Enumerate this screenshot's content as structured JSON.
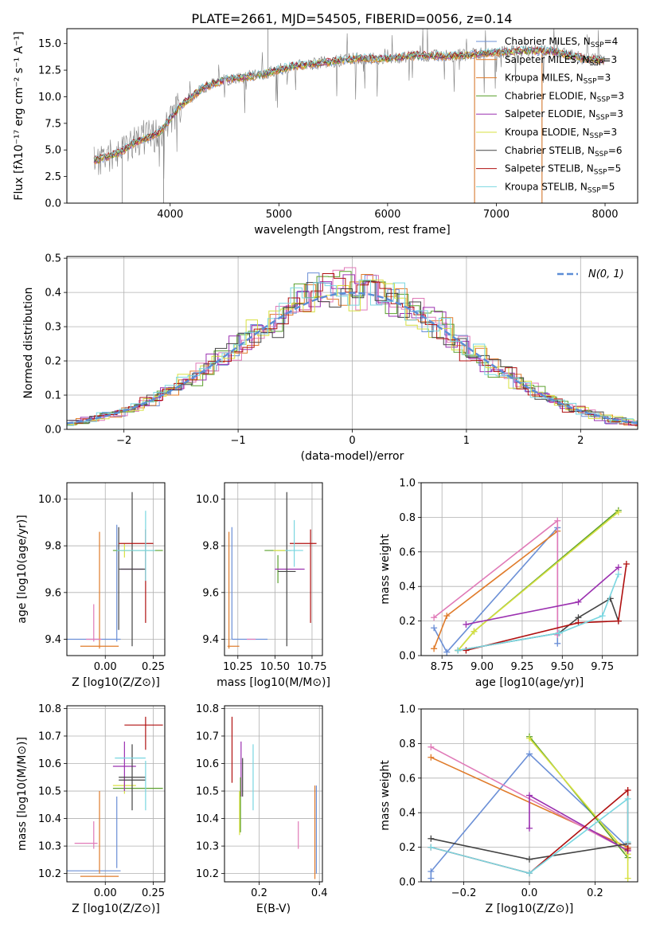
{
  "figure_title": "PLATE=2661, MJD=54505, FIBERID=0056, z=0.14",
  "colors": {
    "chabrier_miles": "#6b8fd6",
    "salpeter_miles": "#e07b2a",
    "kroupa_miles": "#e07b2a",
    "chabrier_elodie": "#5aa02c",
    "salpeter_elodie": "#9b30b0",
    "kroupa_elodie": "#d7e040",
    "chabrier_stelib": "#444444",
    "salpeter_stelib": "#b01010",
    "kroupa_stelib": "#79d6e0",
    "pink": "#e07ab8",
    "gauss": "#5b8dd6",
    "data": "#7f7f7f"
  },
  "chart_data": [
    {
      "id": "spectrum",
      "type": "line",
      "title": "PLATE=2661, MJD=54505, FIBERID=0056, z=0.14",
      "xlabel": "wavelength [Angstrom, rest frame]",
      "ylabel": "Flux [fλ10⁻¹⁷ erg cm⁻² s⁻¹ A⁻¹]",
      "xlim": [
        3050,
        8300
      ],
      "ylim": [
        0,
        16.4
      ],
      "xticks": [
        4000,
        5000,
        6000,
        7000,
        8000
      ],
      "yticks": [
        0.0,
        2.5,
        5.0,
        7.5,
        10.0,
        12.5,
        15.0
      ],
      "continuum": {
        "x": [
          3300,
          3500,
          3700,
          3900,
          4100,
          4300,
          4500,
          4800,
          5100,
          5400,
          5700,
          6000,
          6300,
          6600,
          6900,
          7200,
          7500,
          7800,
          8000
        ],
        "y": [
          4.0,
          4.6,
          5.8,
          6.6,
          9.2,
          10.8,
          11.6,
          12.0,
          12.8,
          13.2,
          13.6,
          13.6,
          13.9,
          13.8,
          14.1,
          14.3,
          14.3,
          13.6,
          13.4
        ]
      },
      "series": [
        {
          "name": "Chabrier MILES, N_SSP=4",
          "color_key": "chabrier_miles"
        },
        {
          "name": "Salpeter MILES, N_SSP=3",
          "color_key": "salpeter_miles"
        },
        {
          "name": "Kroupa MILES, N_SSP=3",
          "color_key": "kroupa_miles"
        },
        {
          "name": "Chabrier ELODIE, N_SSP=3",
          "color_key": "chabrier_elodie"
        },
        {
          "name": "Salpeter ELODIE, N_SSP=3",
          "color_key": "salpeter_elodie"
        },
        {
          "name": "Kroupa ELODIE, N_SSP=3",
          "color_key": "kroupa_elodie"
        },
        {
          "name": "Chabrier STELIB, N_SSP=6",
          "color_key": "chabrier_stelib"
        },
        {
          "name": "Salpeter STELIB, N_SSP=5",
          "color_key": "salpeter_stelib"
        },
        {
          "name": "Kroupa STELIB, N_SSP=5",
          "color_key": "kroupa_stelib"
        }
      ],
      "legend_position": "top-right"
    },
    {
      "id": "residuals",
      "type": "line",
      "xlabel": "(data-model)/error",
      "ylabel": "Normed distribution",
      "xlim": [
        -2.5,
        2.5
      ],
      "ylim": [
        0,
        0.505
      ],
      "xticks": [
        -2,
        -1,
        0,
        1,
        2
      ],
      "yticks": [
        0.0,
        0.1,
        0.2,
        0.3,
        0.4,
        0.5
      ],
      "gaussian": {
        "name": "N(0, 1)",
        "mean": 0,
        "sigma": 1
      },
      "histograms": [
        {
          "color_key": "chabrier_miles",
          "shift": 0.01,
          "seed": 1
        },
        {
          "color_key": "salpeter_miles",
          "shift": -0.02,
          "seed": 2
        },
        {
          "color_key": "pink",
          "shift": 0.03,
          "seed": 3
        },
        {
          "color_key": "chabrier_elodie",
          "shift": -0.01,
          "seed": 4
        },
        {
          "color_key": "salpeter_elodie",
          "shift": 0.02,
          "seed": 5
        },
        {
          "color_key": "kroupa_elodie",
          "shift": -0.03,
          "seed": 6
        },
        {
          "color_key": "chabrier_stelib",
          "shift": 0.0,
          "seed": 7
        },
        {
          "color_key": "salpeter_stelib",
          "shift": 0.04,
          "seed": 8
        },
        {
          "color_key": "kroupa_stelib",
          "shift": -0.04,
          "seed": 9
        }
      ],
      "legend_position": "top-right"
    },
    {
      "id": "age_vs_Z",
      "type": "scatter",
      "xlabel": "Z [log10(Z/Z⊙)]",
      "ylabel": "age  [log10(age/yr)]",
      "xlim": [
        -0.2,
        0.31
      ],
      "ylim": [
        9.33,
        10.07
      ],
      "xticks": [
        0.0,
        0.25
      ],
      "yticks": [
        9.4,
        9.6,
        9.8,
        10.0
      ],
      "crosses": [
        {
          "color_key": "chabrier_miles",
          "x": -0.06,
          "xerr": 0.14,
          "y": 9.4,
          "yerr": 0.0
        },
        {
          "color_key": "chabrier_miles",
          "x": 0.06,
          "xerr": 0.0,
          "y": 9.64,
          "yerr": 0.25
        },
        {
          "color_key": "salpeter_miles",
          "x": -0.03,
          "xerr": 0.1,
          "y": 9.37,
          "yerr": 0.0
        },
        {
          "color_key": "salpeter_miles",
          "x": -0.03,
          "xerr": 0.0,
          "y": 9.61,
          "yerr": 0.25
        },
        {
          "color_key": "pink",
          "x": -0.06,
          "xerr": 0.0,
          "y": 9.47,
          "yerr": 0.08
        },
        {
          "color_key": "pink",
          "x": -0.06,
          "xerr": 0.04,
          "y": 9.4,
          "yerr": 0.0
        },
        {
          "color_key": "chabrier_elodie",
          "x": 0.17,
          "xerr": 0.13,
          "y": 9.78,
          "yerr": 0.0
        },
        {
          "color_key": "kroupa_elodie",
          "x": 0.1,
          "xerr": 0.04,
          "y": 9.78,
          "yerr": 0.03
        },
        {
          "color_key": "salpeter_elodie",
          "x": 0.14,
          "xerr": 0.06,
          "y": 9.7,
          "yerr": 0.0
        },
        {
          "color_key": "chabrier_stelib",
          "x": 0.07,
          "xerr": 0.0,
          "y": 9.66,
          "yerr": 0.22
        },
        {
          "color_key": "chabrier_stelib",
          "x": 0.14,
          "xerr": 0.07,
          "y": 9.7,
          "yerr": 0.33
        },
        {
          "color_key": "salpeter_stelib",
          "x": 0.16,
          "xerr": 0.09,
          "y": 9.81,
          "yerr": 0.0
        },
        {
          "color_key": "salpeter_stelib",
          "x": 0.21,
          "xerr": 0.0,
          "y": 9.67,
          "yerr": 0.2
        },
        {
          "color_key": "kroupa_stelib",
          "x": 0.21,
          "xerr": 0.0,
          "y": 9.8,
          "yerr": 0.15
        },
        {
          "color_key": "kroupa_stelib",
          "x": 0.16,
          "xerr": 0.1,
          "y": 9.78,
          "yerr": 0.0
        }
      ]
    },
    {
      "id": "age_vs_mass",
      "type": "scatter",
      "xlabel": "mass [log10(M/M⊙)]",
      "ylabel": "",
      "xlim": [
        10.16,
        10.82
      ],
      "ylim": [
        9.33,
        10.07
      ],
      "xticks": [
        10.25,
        10.5,
        10.75
      ],
      "yticks": [
        9.4,
        9.6,
        9.8,
        10.0
      ],
      "crosses": [
        {
          "color_key": "chabrier_miles",
          "x": 10.21,
          "xerr": 0.0,
          "y": 9.64,
          "yerr": 0.24
        },
        {
          "color_key": "chabrier_miles",
          "x": 10.33,
          "xerr": 0.12,
          "y": 9.4,
          "yerr": 0.0
        },
        {
          "color_key": "salpeter_miles",
          "x": 10.19,
          "xerr": 0.0,
          "y": 9.61,
          "yerr": 0.25
        },
        {
          "color_key": "salpeter_miles",
          "x": 10.22,
          "xerr": 0.04,
          "y": 9.37,
          "yerr": 0.0
        },
        {
          "color_key": "pink",
          "x": 10.34,
          "xerr": 0.03,
          "y": 9.4,
          "yerr": 0.0
        },
        {
          "color_key": "chabrier_elodie",
          "x": 10.52,
          "xerr": 0.09,
          "y": 9.78,
          "yerr": 0.0
        },
        {
          "color_key": "chabrier_elodie",
          "x": 10.52,
          "xerr": 0.0,
          "y": 9.7,
          "yerr": 0.06
        },
        {
          "color_key": "kroupa_elodie",
          "x": 10.53,
          "xerr": 0.04,
          "y": 9.78,
          "yerr": 0.0
        },
        {
          "color_key": "salpeter_elodie",
          "x": 10.6,
          "xerr": 0.1,
          "y": 9.7,
          "yerr": 0.0
        },
        {
          "color_key": "chabrier_stelib",
          "x": 10.58,
          "xerr": 0.0,
          "y": 9.7,
          "yerr": 0.33
        },
        {
          "color_key": "chabrier_stelib",
          "x": 10.58,
          "xerr": 0.06,
          "y": 9.69,
          "yerr": 0.0
        },
        {
          "color_key": "salpeter_stelib",
          "x": 10.74,
          "xerr": 0.0,
          "y": 9.67,
          "yerr": 0.2
        },
        {
          "color_key": "salpeter_stelib",
          "x": 10.69,
          "xerr": 0.09,
          "y": 9.81,
          "yerr": 0.0
        },
        {
          "color_key": "kroupa_stelib",
          "x": 10.63,
          "xerr": 0.0,
          "y": 9.81,
          "yerr": 0.1
        },
        {
          "color_key": "kroupa_stelib",
          "x": 10.63,
          "xerr": 0.06,
          "y": 9.78,
          "yerr": 0.0
        }
      ]
    },
    {
      "id": "weight_vs_age",
      "type": "line",
      "xlabel": "age  [log10(age/yr)]",
      "ylabel": "mass weight",
      "xlim": [
        8.62,
        9.97
      ],
      "ylim": [
        0,
        1.0
      ],
      "xticks": [
        8.75,
        9.0,
        9.25,
        9.5,
        9.75
      ],
      "yticks": [
        0.0,
        0.2,
        0.4,
        0.6,
        0.8,
        1.0
      ],
      "series": [
        {
          "color_key": "chabrier_miles",
          "x": [
            8.7,
            8.78,
            9.47,
            9.47
          ],
          "y": [
            0.16,
            0.02,
            0.74,
            0.07
          ]
        },
        {
          "color_key": "salpeter_miles",
          "x": [
            8.7,
            8.78,
            9.47
          ],
          "y": [
            0.04,
            0.23,
            0.72
          ]
        },
        {
          "color_key": "pink",
          "x": [
            8.7,
            9.47,
            9.47
          ],
          "y": [
            0.22,
            0.78,
            0.12
          ]
        },
        {
          "color_key": "chabrier_elodie",
          "x": [
            8.85,
            8.95,
            9.85
          ],
          "y": [
            0.03,
            0.14,
            0.84
          ]
        },
        {
          "color_key": "kroupa_elodie",
          "x": [
            8.85,
            8.95,
            9.85
          ],
          "y": [
            0.03,
            0.14,
            0.83
          ]
        },
        {
          "color_key": "salpeter_elodie",
          "x": [
            8.9,
            9.6,
            9.85
          ],
          "y": [
            0.18,
            0.31,
            0.51
          ]
        },
        {
          "color_key": "chabrier_stelib",
          "x": [
            8.85,
            9.48,
            9.6,
            9.8,
            9.85
          ],
          "y": [
            0.03,
            0.13,
            0.22,
            0.33,
            0.2
          ]
        },
        {
          "color_key": "salpeter_stelib",
          "x": [
            8.9,
            9.6,
            9.85,
            9.9
          ],
          "y": [
            0.03,
            0.19,
            0.2,
            0.53
          ]
        },
        {
          "color_key": "kroupa_stelib",
          "x": [
            8.85,
            9.48,
            9.75,
            9.85
          ],
          "y": [
            0.03,
            0.13,
            0.23,
            0.47
          ]
        }
      ]
    },
    {
      "id": "mass_vs_Z",
      "type": "scatter",
      "xlabel": "Z [log10(Z/Z⊙)]",
      "ylabel": "mass [log10(M/M⊙)]",
      "xlim": [
        -0.2,
        0.31
      ],
      "ylim": [
        10.17,
        10.81
      ],
      "xticks": [
        0.0,
        0.25
      ],
      "yticks": [
        10.2,
        10.3,
        10.4,
        10.5,
        10.6,
        10.7,
        10.8
      ],
      "crosses": [
        {
          "color_key": "chabrier_miles",
          "x": -0.06,
          "xerr": 0.14,
          "y": 10.21,
          "yerr": 0.0
        },
        {
          "color_key": "chabrier_miles",
          "x": 0.06,
          "xerr": 0.0,
          "y": 10.35,
          "yerr": 0.13
        },
        {
          "color_key": "salpeter_miles",
          "x": -0.03,
          "xerr": 0.1,
          "y": 10.19,
          "yerr": 0.0
        },
        {
          "color_key": "salpeter_miles",
          "x": -0.03,
          "xerr": 0.0,
          "y": 10.35,
          "yerr": 0.15
        },
        {
          "color_key": "pink",
          "x": -0.1,
          "xerr": 0.06,
          "y": 10.31,
          "yerr": 0.0
        },
        {
          "color_key": "pink",
          "x": -0.06,
          "xerr": 0.0,
          "y": 10.34,
          "yerr": 0.05
        },
        {
          "color_key": "chabrier_elodie",
          "x": 0.17,
          "xerr": 0.13,
          "y": 10.51,
          "yerr": 0.0
        },
        {
          "color_key": "kroupa_elodie",
          "x": 0.1,
          "xerr": 0.06,
          "y": 10.52,
          "yerr": 0.03
        },
        {
          "color_key": "salpeter_elodie",
          "x": 0.1,
          "xerr": 0.06,
          "y": 10.59,
          "yerr": 0.09
        },
        {
          "color_key": "chabrier_stelib",
          "x": 0.14,
          "xerr": 0.07,
          "y": 10.55,
          "yerr": 0.12
        },
        {
          "color_key": "chabrier_stelib",
          "x": 0.14,
          "xerr": 0.07,
          "y": 10.54,
          "yerr": 0.0
        },
        {
          "color_key": "salpeter_stelib",
          "x": 0.2,
          "xerr": 0.1,
          "y": 10.74,
          "yerr": 0.0
        },
        {
          "color_key": "salpeter_stelib",
          "x": 0.21,
          "xerr": 0.0,
          "y": 10.71,
          "yerr": 0.06
        },
        {
          "color_key": "kroupa_stelib",
          "x": 0.13,
          "xerr": 0.08,
          "y": 10.62,
          "yerr": 0.0
        },
        {
          "color_key": "kroupa_stelib",
          "x": 0.21,
          "xerr": 0.0,
          "y": 10.52,
          "yerr": 0.09
        }
      ]
    },
    {
      "id": "mass_vs_ebv",
      "type": "scatter",
      "xlabel": "E(B-V)",
      "ylabel": "",
      "xlim": [
        0.085,
        0.41
      ],
      "ylim": [
        10.17,
        10.81
      ],
      "xticks": [
        0.2,
        0.4
      ],
      "yticks": [
        10.2,
        10.3,
        10.4,
        10.5,
        10.6,
        10.7,
        10.8
      ],
      "crosses": [
        {
          "color_key": "salpeter_stelib",
          "x": 0.11,
          "xerr": 0.0,
          "y": 10.65,
          "yerr": 0.12
        },
        {
          "color_key": "salpeter_elodie",
          "x": 0.14,
          "xerr": 0.0,
          "y": 10.58,
          "yerr": 0.1
        },
        {
          "color_key": "chabrier_stelib",
          "x": 0.145,
          "xerr": 0.0,
          "y": 10.55,
          "yerr": 0.07
        },
        {
          "color_key": "chabrier_elodie",
          "x": 0.138,
          "xerr": 0.0,
          "y": 10.45,
          "yerr": 0.1
        },
        {
          "color_key": "kroupa_elodie",
          "x": 0.135,
          "xerr": 0.0,
          "y": 10.42,
          "yerr": 0.08
        },
        {
          "color_key": "kroupa_stelib",
          "x": 0.18,
          "xerr": 0.0,
          "y": 10.55,
          "yerr": 0.12
        },
        {
          "color_key": "pink",
          "x": 0.33,
          "xerr": 0.0,
          "y": 10.34,
          "yerr": 0.05
        },
        {
          "color_key": "salpeter_miles",
          "x": 0.385,
          "xerr": 0.0,
          "y": 10.35,
          "yerr": 0.17
        },
        {
          "color_key": "chabrier_miles",
          "x": 0.39,
          "xerr": 0.0,
          "y": 10.36,
          "yerr": 0.16
        }
      ]
    },
    {
      "id": "weight_vs_Z",
      "type": "line",
      "xlabel": "Z [log10(Z/Z⊙)]",
      "ylabel": "mass weight",
      "xlim": [
        -0.33,
        0.33
      ],
      "ylim": [
        0,
        1.0
      ],
      "xticks": [
        -0.2,
        0.0,
        0.2
      ],
      "yticks": [
        0.0,
        0.2,
        0.4,
        0.6,
        0.8,
        1.0
      ],
      "series": [
        {
          "color_key": "chabrier_miles",
          "x": [
            -0.3,
            -0.3,
            0.0,
            0.3
          ],
          "y": [
            0.02,
            0.06,
            0.74,
            0.2
          ]
        },
        {
          "color_key": "salpeter_miles",
          "x": [
            -0.3,
            0.3
          ],
          "y": [
            0.72,
            0.2
          ]
        },
        {
          "color_key": "pink",
          "x": [
            -0.3,
            0.3
          ],
          "y": [
            0.78,
            0.18
          ]
        },
        {
          "color_key": "chabrier_elodie",
          "x": [
            0.0,
            0.3
          ],
          "y": [
            0.84,
            0.14
          ]
        },
        {
          "color_key": "kroupa_elodie",
          "x": [
            0.0,
            0.3,
            0.3
          ],
          "y": [
            0.83,
            0.16,
            0.02
          ]
        },
        {
          "color_key": "salpeter_elodie",
          "x": [
            0.0,
            0.0,
            0.3
          ],
          "y": [
            0.31,
            0.5,
            0.18
          ]
        },
        {
          "color_key": "chabrier_stelib",
          "x": [
            -0.3,
            0.0,
            0.3
          ],
          "y": [
            0.25,
            0.13,
            0.22
          ]
        },
        {
          "color_key": "salpeter_stelib",
          "x": [
            -0.3,
            0.0,
            0.3,
            0.3
          ],
          "y": [
            0.2,
            0.05,
            0.53,
            0.19
          ]
        },
        {
          "color_key": "kroupa_stelib",
          "x": [
            -0.3,
            0.0,
            0.3,
            0.3
          ],
          "y": [
            0.2,
            0.05,
            0.48,
            0.23
          ]
        }
      ]
    }
  ]
}
